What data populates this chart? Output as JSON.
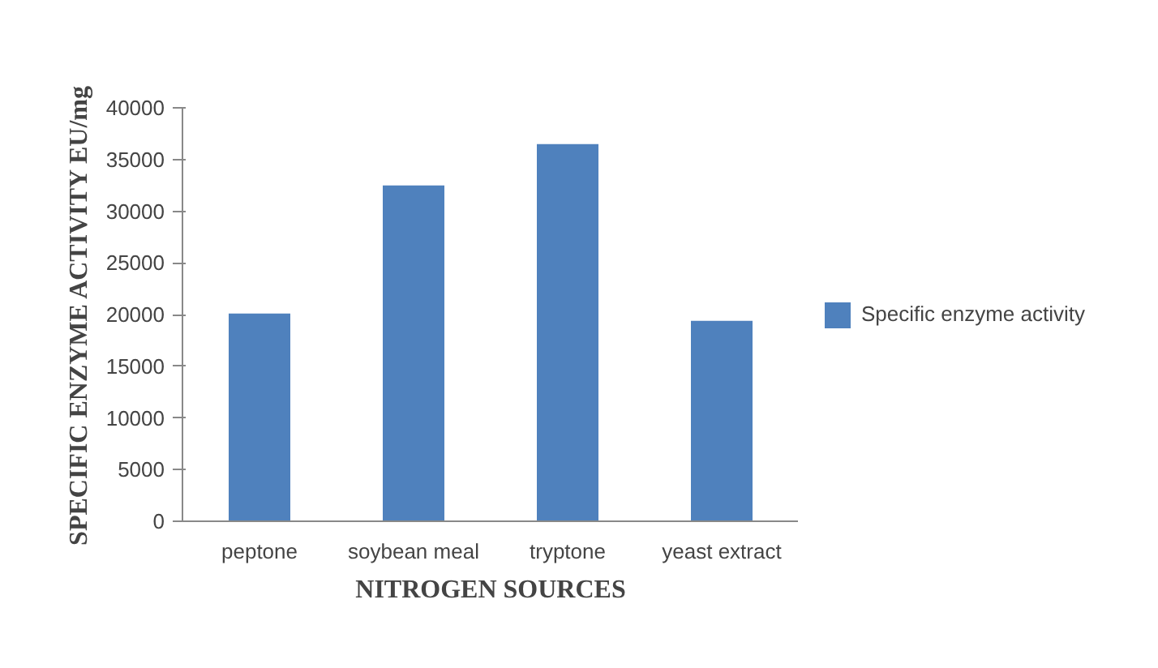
{
  "chart_data": {
    "type": "bar",
    "categories": [
      "peptone",
      "soybean meal",
      "tryptone",
      "yeast extract"
    ],
    "series": [
      {
        "name": "Specific enzyme activity",
        "color": "#4f81bd",
        "values": [
          20100,
          32500,
          36500,
          19400
        ]
      }
    ],
    "xlabel": "NITROGEN SOURCES",
    "ylabel": "SPECIFIC ENZYME ACTIVITY EU/mg",
    "ylim": [
      0,
      40000
    ],
    "yticks": [
      0,
      5000,
      10000,
      15000,
      20000,
      25000,
      30000,
      35000,
      40000
    ],
    "grid": false,
    "legend": "right"
  }
}
